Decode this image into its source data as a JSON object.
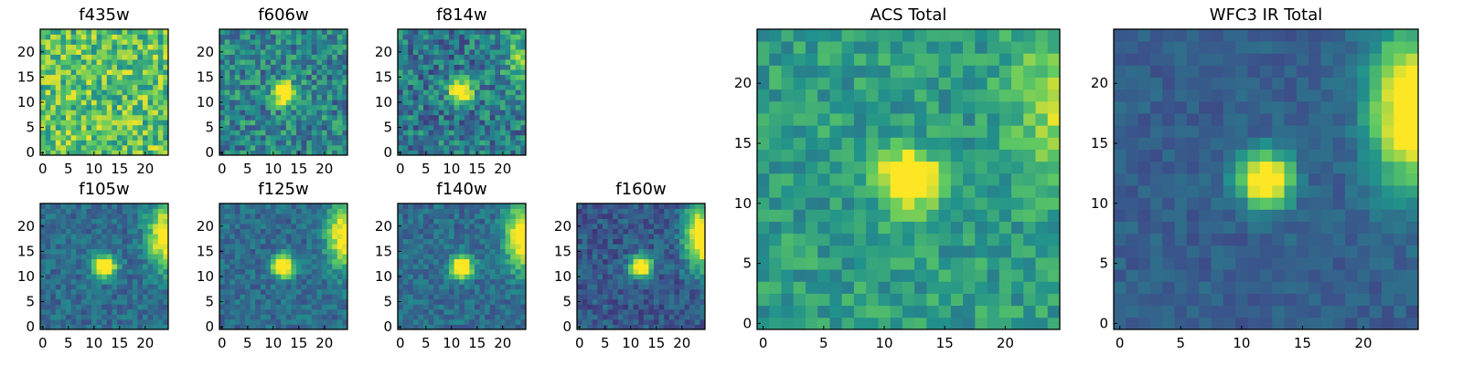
{
  "figure": {
    "colormap": "viridis",
    "colormap_stops": [
      "#440154",
      "#3b528b",
      "#21918c",
      "#5ec962",
      "#fde725"
    ],
    "source_position": [
      12,
      12
    ]
  },
  "chart_data": [
    {
      "type": "heatmap",
      "title": "f435w",
      "grid_size": 25,
      "xticks": [
        0,
        5,
        10,
        15,
        20
      ],
      "yticks": [
        0,
        5,
        10,
        15,
        20
      ],
      "xlim": [
        0,
        24
      ],
      "ylim": [
        0,
        24
      ],
      "source_peak": 0.0,
      "noise": 0.25,
      "background_level": 0.72,
      "edge_gradient": 0.0
    },
    {
      "type": "heatmap",
      "title": "f606w",
      "grid_size": 25,
      "xticks": [
        0,
        5,
        10,
        15,
        20
      ],
      "yticks": [
        0,
        5,
        10,
        15,
        20
      ],
      "xlim": [
        0,
        24
      ],
      "ylim": [
        0,
        24
      ],
      "source_peak": 0.9,
      "noise": 0.22,
      "background_level": 0.45,
      "edge_gradient": 0.0
    },
    {
      "type": "heatmap",
      "title": "f814w",
      "grid_size": 25,
      "xticks": [
        0,
        5,
        10,
        15,
        20
      ],
      "yticks": [
        0,
        5,
        10,
        15,
        20
      ],
      "xlim": [
        0,
        24
      ],
      "ylim": [
        0,
        24
      ],
      "source_peak": 0.9,
      "noise": 0.22,
      "background_level": 0.4,
      "edge_gradient": 0.35
    },
    {
      "type": "heatmap",
      "title": "f105w",
      "grid_size": 25,
      "xticks": [
        0,
        5,
        10,
        15,
        20
      ],
      "yticks": [
        0,
        5,
        10,
        15,
        20
      ],
      "xlim": [
        0,
        24
      ],
      "ylim": [
        0,
        24
      ],
      "source_peak": 1.0,
      "noise": 0.12,
      "background_level": 0.35,
      "edge_gradient": 0.75
    },
    {
      "type": "heatmap",
      "title": "f125w",
      "grid_size": 25,
      "xticks": [
        0,
        5,
        10,
        15,
        20
      ],
      "yticks": [
        0,
        5,
        10,
        15,
        20
      ],
      "xlim": [
        0,
        24
      ],
      "ylim": [
        0,
        24
      ],
      "source_peak": 1.0,
      "noise": 0.12,
      "background_level": 0.35,
      "edge_gradient": 0.75
    },
    {
      "type": "heatmap",
      "title": "f140w",
      "grid_size": 25,
      "xticks": [
        0,
        5,
        10,
        15,
        20
      ],
      "yticks": [
        0,
        5,
        10,
        15,
        20
      ],
      "xlim": [
        0,
        24
      ],
      "ylim": [
        0,
        24
      ],
      "source_peak": 1.0,
      "noise": 0.12,
      "background_level": 0.35,
      "edge_gradient": 0.8
    },
    {
      "type": "heatmap",
      "title": "f160w",
      "grid_size": 25,
      "xticks": [
        0,
        5,
        10,
        15,
        20
      ],
      "yticks": [
        0,
        5,
        10,
        15,
        20
      ],
      "xlim": [
        0,
        24
      ],
      "ylim": [
        0,
        24
      ],
      "source_peak": 1.0,
      "noise": 0.12,
      "background_level": 0.28,
      "edge_gradient": 0.9
    },
    {
      "type": "heatmap",
      "title": "ACS Total",
      "grid_size": 25,
      "xticks": [
        0,
        5,
        10,
        15,
        20
      ],
      "yticks": [
        0,
        5,
        10,
        15,
        20
      ],
      "xlim": [
        0,
        24
      ],
      "ylim": [
        0,
        24
      ],
      "source_peak": 1.0,
      "noise": 0.14,
      "background_level": 0.55,
      "edge_gradient": 0.3
    },
    {
      "type": "heatmap",
      "title": "WFC3 IR Total",
      "grid_size": 25,
      "xticks": [
        0,
        5,
        10,
        15,
        20
      ],
      "yticks": [
        0,
        5,
        10,
        15,
        20
      ],
      "xlim": [
        0,
        24
      ],
      "ylim": [
        0,
        24
      ],
      "source_peak": 1.0,
      "noise": 0.07,
      "background_level": 0.3,
      "edge_gradient": 0.9
    }
  ]
}
